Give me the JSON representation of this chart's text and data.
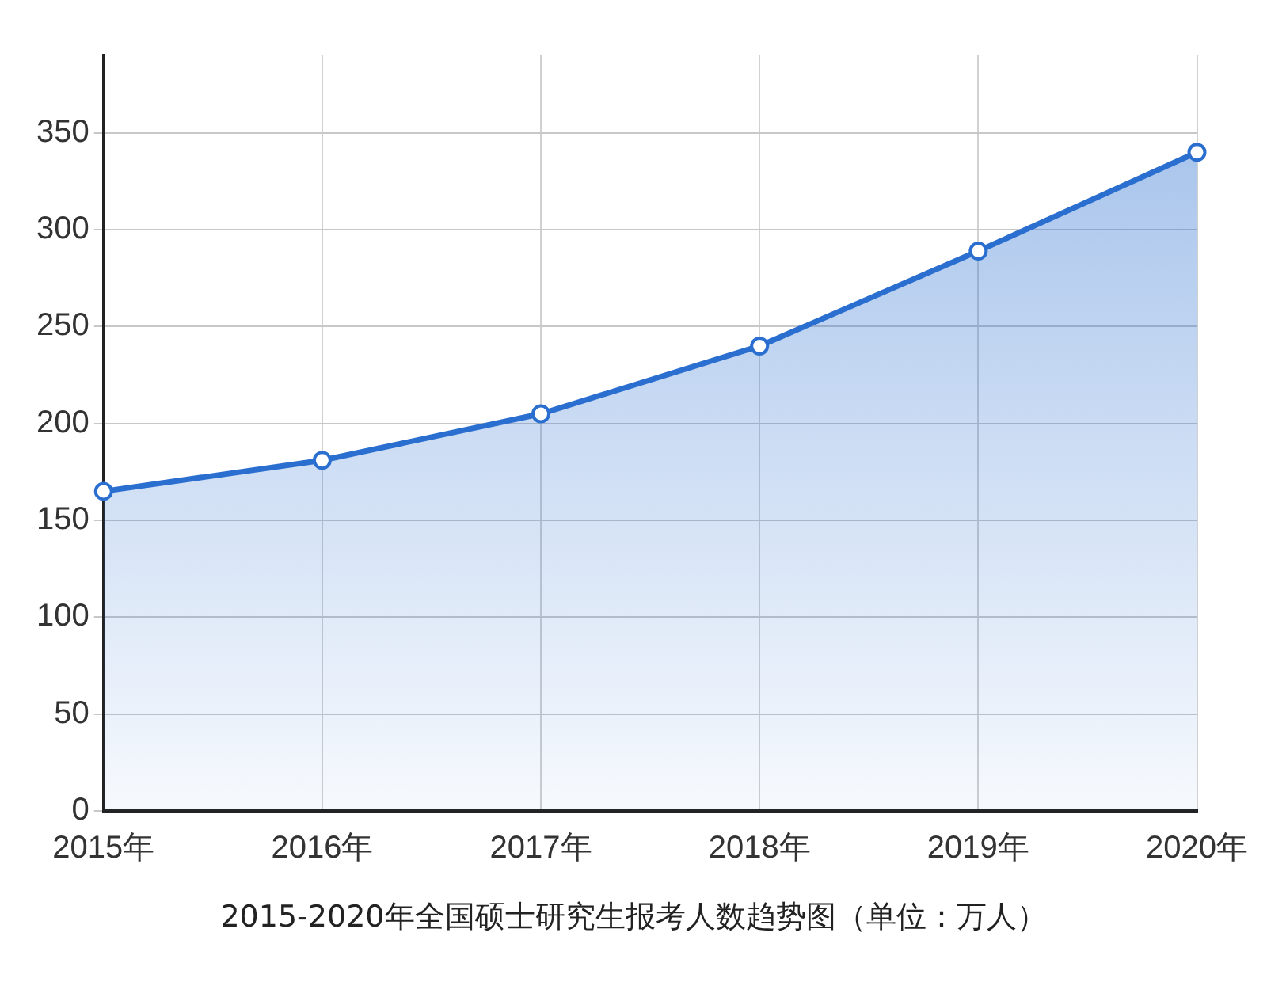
{
  "chart_data": {
    "type": "area",
    "title": "2015-2020年全国硕士研究生报考人数趋势图（单位：万人）",
    "categories": [
      "2015年",
      "2016年",
      "2017年",
      "2018年",
      "2019年",
      "2020年"
    ],
    "series": [
      {
        "color": "#2a6fd0",
        "values": [
          165,
          181,
          205,
          240,
          289,
          340
        ]
      }
    ],
    "ylim": [
      0,
      390
    ],
    "yticks": [
      0,
      50,
      100,
      150,
      200,
      250,
      300,
      350
    ],
    "grid": true,
    "legend": false,
    "marker": "circle",
    "line_style": "solid"
  }
}
